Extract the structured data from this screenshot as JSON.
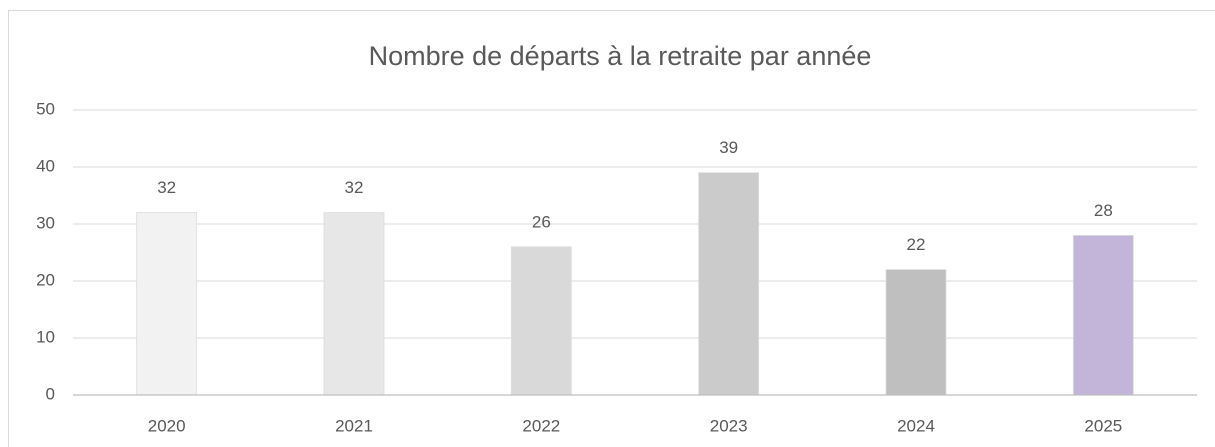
{
  "chart_data": {
    "type": "bar",
    "title": "Nombre de départs à la retraite par année",
    "categories": [
      "2020",
      "2021",
      "2022",
      "2023",
      "2024",
      "2025"
    ],
    "values": [
      32,
      32,
      26,
      39,
      22,
      28
    ],
    "colors": [
      "#f2f2f2",
      "#e7e7e7",
      "#d9d9d9",
      "#cbcbcb",
      "#bfbfbf",
      "#c3b5d9"
    ],
    "ylim": [
      0,
      50
    ],
    "yticks": [
      0,
      10,
      20,
      30,
      40,
      50
    ],
    "grid": true
  }
}
